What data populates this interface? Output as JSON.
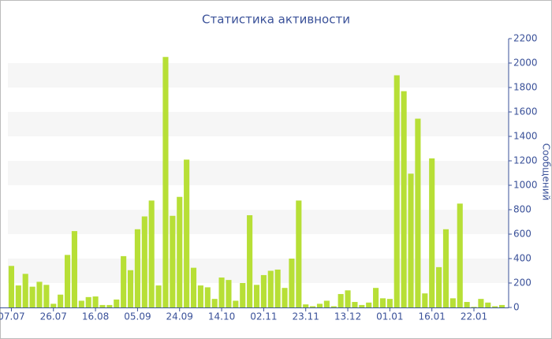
{
  "chart_data": {
    "type": "bar",
    "title": "Статистика активности",
    "y_label": "Сообщений",
    "categories": [
      "07.07",
      null,
      null,
      null,
      null,
      null,
      "26.07",
      null,
      null,
      null,
      null,
      null,
      "16.08",
      null,
      null,
      null,
      null,
      null,
      "05.09",
      null,
      null,
      null,
      null,
      null,
      "24.09",
      null,
      null,
      null,
      null,
      null,
      "14.10",
      null,
      null,
      null,
      null,
      null,
      "02.11",
      null,
      null,
      null,
      null,
      null,
      "23.11",
      null,
      null,
      null,
      null,
      null,
      "13.12",
      null,
      null,
      null,
      null,
      null,
      "01.01",
      null,
      null,
      null,
      null,
      null,
      "16.01",
      null,
      null,
      null,
      null,
      null,
      "22.01",
      null,
      null,
      null,
      null
    ],
    "values": [
      340,
      180,
      275,
      170,
      210,
      185,
      30,
      105,
      430,
      625,
      55,
      85,
      90,
      20,
      20,
      65,
      420,
      305,
      640,
      745,
      875,
      180,
      2050,
      750,
      905,
      1210,
      325,
      180,
      165,
      70,
      245,
      225,
      55,
      200,
      755,
      185,
      265,
      300,
      310,
      160,
      400,
      875,
      25,
      10,
      30,
      55,
      10,
      110,
      140,
      45,
      20,
      40,
      160,
      75,
      70,
      1900,
      1770,
      1095,
      1545,
      115,
      1220,
      330,
      640,
      75,
      850,
      45,
      5,
      70,
      40,
      10,
      20
    ],
    "color": "#b7df36",
    "ylim": [
      0,
      2200
    ],
    "yticks": [
      0,
      200,
      400,
      600,
      800,
      1000,
      1200,
      1400,
      1600,
      1800,
      2000,
      2200
    ],
    "grid": true
  }
}
